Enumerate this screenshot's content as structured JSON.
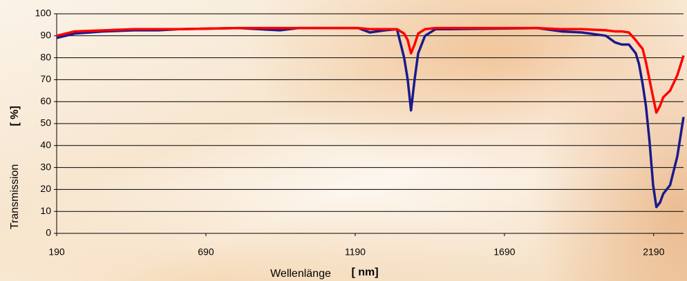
{
  "chart_data": {
    "type": "line",
    "xlabel": "Wellenlänge",
    "xlabel_unit": "[ nm]",
    "ylabel": "Transmission",
    "ylabel_unit": "[ %]",
    "x": [
      190,
      250,
      350,
      450,
      530,
      600,
      800,
      938,
      1000,
      1200,
      1239,
      1290,
      1330,
      1354,
      1366,
      1377,
      1389,
      1401,
      1424,
      1459,
      1500,
      1800,
      1880,
      1950,
      2030,
      2060,
      2083,
      2107,
      2130,
      2141,
      2153,
      2164,
      2176,
      2188,
      2199,
      2211,
      2222,
      2245,
      2269,
      2290
    ],
    "series": [
      {
        "color": "#1a1a8c",
        "values": [
          89,
          91,
          92,
          92.5,
          92.5,
          93,
          93.5,
          92.5,
          93.5,
          93.5,
          91.5,
          92.5,
          93,
          80,
          70,
          56,
          70,
          82,
          90,
          93,
          93,
          93.5,
          92,
          91.5,
          90,
          87,
          86,
          86,
          82,
          77,
          68,
          58,
          42,
          22,
          12,
          14,
          18,
          22,
          35,
          53
        ]
      },
      {
        "color": "#ff0000",
        "values": [
          90,
          92,
          92.5,
          93,
          93,
          93,
          93.5,
          93.5,
          93.5,
          93.5,
          93,
          93,
          93,
          91,
          88,
          82,
          86,
          91,
          93,
          93.5,
          93.5,
          93.5,
          93,
          93,
          92.5,
          92,
          92,
          91.5,
          88,
          86,
          84,
          78,
          70,
          62,
          55,
          58,
          62,
          65,
          72,
          81
        ]
      }
    ],
    "xlim": [
      190,
      2290
    ],
    "xticks": [
      190,
      690,
      1190,
      1690,
      2190
    ],
    "ylim": [
      0,
      100
    ],
    "yticks": [
      0,
      10,
      20,
      30,
      40,
      50,
      60,
      70,
      80,
      90,
      100
    ],
    "grid": true
  }
}
